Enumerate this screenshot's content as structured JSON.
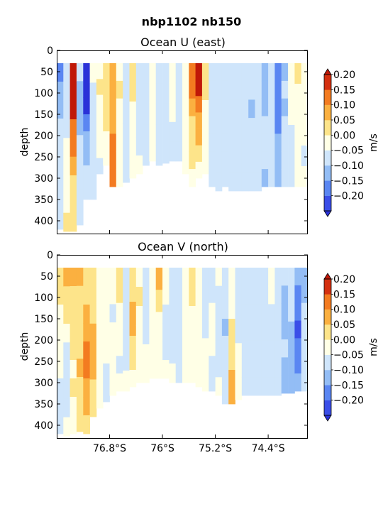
{
  "figure": {
    "suptitle": "nbp1102 nb150"
  },
  "colormap": {
    "levels": [
      -0.2,
      -0.15,
      -0.1,
      -0.05,
      0.0,
      0.05,
      0.1,
      0.15,
      0.2
    ],
    "colors": [
      "#3a4ee8",
      "#5a86f2",
      "#93bdf5",
      "#cfe5fb",
      "#ffffe6",
      "#fde48a",
      "#fbb040",
      "#f37b20",
      "#d43010"
    ],
    "extend_low": "#2a32d8",
    "extend_high": "#c01808"
  },
  "chart_data": [
    {
      "type": "heatmap",
      "title": "Ocean U (east)",
      "xlabel": "",
      "ylabel": "depth",
      "ylim": [
        430,
        0
      ],
      "yticks": [
        "0",
        "50",
        "100",
        "150",
        "200",
        "250",
        "300",
        "350",
        "400"
      ],
      "xlim": [
        -77.6,
        -73.8
      ],
      "xticks": [],
      "colorbar": {
        "label": "m/s",
        "ticks": [
          "0.20",
          "0.15",
          "0.10",
          "0.05",
          "0.00",
          "−0.05",
          "−0.10",
          "−0.15",
          "−0.20"
        ]
      },
      "profiles": [
        {
          "lat": -77.55,
          "bottom": 420,
          "values": [
            -0.12,
            -0.1,
            -0.07,
            -0.05,
            -0.04,
            -0.03,
            -0.02,
            -0.02,
            -0.01
          ]
        },
        {
          "lat": -77.45,
          "bottom": 425,
          "values": [
            -0.05,
            -0.03,
            -0.02,
            -0.01,
            0.0,
            0.01,
            0.03,
            0.04,
            0.05
          ]
        },
        {
          "lat": -77.35,
          "bottom": 425,
          "values": [
            0.22,
            0.22,
            0.21,
            0.19,
            0.15,
            0.12,
            0.08,
            0.06,
            0.05
          ]
        },
        {
          "lat": -77.25,
          "bottom": 410,
          "values": [
            -0.05,
            -0.06,
            -0.07,
            -0.06,
            -0.05,
            -0.04,
            -0.03,
            -0.02,
            -0.01
          ]
        },
        {
          "lat": -77.15,
          "bottom": 350,
          "values": [
            -0.22,
            -0.22,
            -0.21,
            -0.15,
            -0.1,
            -0.07,
            -0.05,
            -0.03
          ]
        },
        {
          "lat": -77.05,
          "bottom": 350,
          "values": [
            0.0,
            -0.01,
            -0.03,
            -0.04,
            -0.05,
            -0.04,
            -0.03
          ]
        },
        {
          "lat": -76.95,
          "bottom": 290,
          "values": [
            0.04,
            0.06,
            0.04,
            0.02,
            0.01,
            0.0,
            -0.01
          ]
        },
        {
          "lat": -76.85,
          "bottom": 270,
          "values": [
            0.08,
            0.09,
            0.07,
            0.05,
            0.03,
            0.02
          ]
        },
        {
          "lat": -76.75,
          "bottom": 320,
          "values": [
            0.12,
            0.13,
            0.14,
            0.13,
            0.15,
            0.18,
            0.16
          ]
        },
        {
          "lat": -76.65,
          "bottom": 320,
          "values": [
            0.04,
            0.05,
            0.04,
            0.03,
            0.02,
            0.02,
            0.01
          ]
        },
        {
          "lat": -76.55,
          "bottom": 310,
          "values": [
            -0.03,
            -0.02,
            -0.03,
            -0.02,
            -0.02,
            -0.01
          ]
        },
        {
          "lat": -76.45,
          "bottom": 300,
          "values": [
            0.05,
            0.06,
            0.03,
            0.02,
            0.01,
            0.0
          ]
        },
        {
          "lat": -76.35,
          "bottom": 290,
          "values": [
            -0.02,
            -0.03,
            -0.02,
            -0.01,
            -0.01,
            0.0
          ]
        },
        {
          "lat": -76.25,
          "bottom": 270,
          "values": [
            -0.04,
            -0.03,
            -0.02,
            -0.02,
            -0.01
          ]
        },
        {
          "lat": -76.15,
          "bottom": 260,
          "values": [
            0.01,
            0.02,
            0.01,
            0.0,
            0.0
          ]
        },
        {
          "lat": -76.05,
          "bottom": 270,
          "values": [
            -0.02,
            -0.01,
            -0.02,
            -0.03,
            -0.02
          ]
        },
        {
          "lat": -75.95,
          "bottom": 265,
          "values": [
            -0.03,
            -0.02,
            -0.01,
            -0.02,
            -0.01
          ]
        },
        {
          "lat": -75.85,
          "bottom": 260,
          "values": [
            0.02,
            0.01,
            0.0,
            -0.01,
            -0.01
          ]
        },
        {
          "lat": -75.75,
          "bottom": 260,
          "values": [
            -0.02,
            -0.02,
            -0.03,
            -0.02,
            -0.01
          ]
        },
        {
          "lat": -75.65,
          "bottom": 290,
          "values": [
            0.02,
            0.03,
            0.02,
            0.01,
            0.0,
            0.01
          ]
        },
        {
          "lat": -75.55,
          "bottom": 320,
          "values": [
            0.15,
            0.16,
            0.12,
            0.08,
            0.06,
            0.05,
            0.04
          ]
        },
        {
          "lat": -75.45,
          "bottom": 300,
          "values": [
            0.24,
            0.2,
            0.16,
            0.14,
            0.12,
            0.08,
            0.04
          ]
        },
        {
          "lat": -75.35,
          "bottom": 290,
          "values": [
            0.06,
            0.05,
            0.04,
            0.02,
            0.01,
            0.0
          ]
        },
        {
          "lat": -75.25,
          "bottom": 320,
          "values": [
            -0.03,
            -0.04,
            -0.03,
            -0.02,
            -0.03,
            -0.04,
            -0.03
          ]
        },
        {
          "lat": -75.15,
          "bottom": 330,
          "values": [
            -0.02,
            -0.03,
            -0.02,
            -0.03,
            -0.04,
            -0.03,
            -0.02
          ]
        },
        {
          "lat": -75.05,
          "bottom": 320,
          "values": [
            -0.02,
            -0.02,
            -0.03,
            -0.04,
            -0.03,
            -0.02,
            -0.01
          ]
        },
        {
          "lat": -74.95,
          "bottom": 330,
          "values": [
            -0.03,
            -0.02,
            -0.02,
            -0.01,
            -0.02,
            -0.03,
            -0.02
          ]
        },
        {
          "lat": -74.85,
          "bottom": 330,
          "values": [
            -0.02,
            -0.03,
            -0.04,
            -0.03,
            -0.02,
            -0.03,
            -0.04
          ]
        },
        {
          "lat": -74.75,
          "bottom": 330,
          "values": [
            -0.04,
            -0.03,
            -0.02,
            -0.03,
            -0.04,
            -0.03,
            -0.02
          ]
        },
        {
          "lat": -74.65,
          "bottom": 330,
          "values": [
            -0.02,
            -0.04,
            -0.06,
            -0.04,
            -0.03,
            -0.02,
            -0.03
          ]
        },
        {
          "lat": -74.55,
          "bottom": 330,
          "values": [
            -0.03,
            -0.02,
            -0.01,
            -0.02,
            -0.01,
            -0.02,
            -0.03
          ]
        },
        {
          "lat": -74.45,
          "bottom": 320,
          "values": [
            -0.06,
            -0.07,
            -0.06,
            -0.05,
            -0.04,
            -0.05,
            -0.06
          ]
        },
        {
          "lat": -74.35,
          "bottom": 320,
          "values": [
            -0.02,
            -0.03,
            -0.02,
            -0.01,
            -0.02,
            -0.01
          ]
        },
        {
          "lat": -74.25,
          "bottom": 320,
          "values": [
            -0.12,
            -0.14,
            -0.13,
            -0.12,
            -0.1,
            -0.08,
            -0.06
          ]
        },
        {
          "lat": -74.15,
          "bottom": 320,
          "values": [
            -0.06,
            -0.05,
            -0.06,
            -0.05,
            -0.04,
            -0.03,
            -0.02
          ]
        },
        {
          "lat": -74.05,
          "bottom": 320,
          "values": [
            0.02,
            0.01,
            0.0,
            -0.01,
            -0.02,
            -0.01
          ]
        },
        {
          "lat": -73.95,
          "bottom": 320,
          "values": [
            0.06,
            0.03,
            0.02,
            0.01,
            0.0,
            0.0
          ]
        },
        {
          "lat": -73.85,
          "bottom": 320,
          "values": [
            0.01,
            0.0,
            0.01,
            0.0,
            -0.01,
            0.0
          ]
        }
      ]
    },
    {
      "type": "heatmap",
      "title": "Ocean V (north)",
      "xlabel": "",
      "ylabel": "depth",
      "ylim": [
        430,
        0
      ],
      "yticks": [
        "0",
        "50",
        "100",
        "150",
        "200",
        "250",
        "300",
        "350",
        "400"
      ],
      "xlim": [
        -77.6,
        -73.8
      ],
      "xticks": [
        {
          "label": "76.8°S",
          "lat": -76.8
        },
        {
          "label": "76°S",
          "lat": -76.0
        },
        {
          "label": "75.2°S",
          "lat": -75.2
        },
        {
          "label": "74.4°S",
          "lat": -74.4
        }
      ],
      "colorbar": {
        "label": "m/s",
        "ticks": [
          "0.20",
          "0.15",
          "0.10",
          "0.05",
          "0.00",
          "−0.05",
          "−0.10",
          "−0.15",
          "−0.20"
        ]
      },
      "profiles": [
        {
          "lat": -77.55,
          "bottom": 420,
          "values": [
            0.06,
            0.07,
            0.04,
            0.02,
            0.01,
            0.0,
            -0.01,
            -0.02,
            -0.02
          ]
        },
        {
          "lat": -77.45,
          "bottom": 425,
          "values": [
            0.12,
            0.09,
            0.05,
            0.0,
            -0.02,
            -0.03,
            -0.02,
            -0.01,
            0.0
          ]
        },
        {
          "lat": -77.35,
          "bottom": 420,
          "values": [
            0.11,
            0.09,
            0.07,
            0.06,
            0.05,
            0.04,
            0.05,
            0.04,
            0.03
          ]
        },
        {
          "lat": -77.25,
          "bottom": 415,
          "values": [
            0.1,
            0.09,
            0.08,
            0.08,
            0.09,
            0.1,
            0.09,
            0.08,
            0.07
          ]
        },
        {
          "lat": -77.15,
          "bottom": 420,
          "values": [
            0.08,
            0.09,
            0.1,
            0.12,
            0.17,
            0.18,
            0.13,
            0.1,
            0.09
          ]
        },
        {
          "lat": -77.05,
          "bottom": 380,
          "values": [
            0.06,
            0.07,
            0.08,
            0.1,
            0.12,
            0.1,
            0.08,
            0.06
          ]
        },
        {
          "lat": -76.95,
          "bottom": 360,
          "values": [
            0.02,
            0.03,
            0.02,
            0.01,
            0.01,
            0.0,
            0.0,
            0.01
          ]
        },
        {
          "lat": -76.85,
          "bottom": 345,
          "values": [
            0.04,
            0.03,
            0.02,
            0.01,
            0.0,
            -0.01,
            -0.02
          ]
        },
        {
          "lat": -76.75,
          "bottom": 330,
          "values": [
            0.01,
            0.0,
            -0.02,
            0.0,
            0.01,
            0.02,
            0.01
          ]
        },
        {
          "lat": -76.65,
          "bottom": 320,
          "values": [
            0.08,
            0.06,
            0.03,
            0.01,
            0.0,
            -0.01,
            0.0
          ]
        },
        {
          "lat": -76.55,
          "bottom": 320,
          "values": [
            -0.01,
            -0.02,
            -0.03,
            -0.02,
            -0.01,
            0.0
          ]
        },
        {
          "lat": -76.45,
          "bottom": 310,
          "values": [
            0.06,
            0.08,
            0.1,
            0.11,
            0.08,
            0.05,
            0.02
          ]
        },
        {
          "lat": -76.35,
          "bottom": 300,
          "values": [
            0.04,
            0.05,
            0.04,
            0.03,
            0.02,
            0.01
          ]
        },
        {
          "lat": -76.25,
          "bottom": 300,
          "values": [
            -0.02,
            -0.03,
            -0.02,
            -0.01,
            0.0,
            0.0
          ]
        },
        {
          "lat": -76.15,
          "bottom": 290,
          "values": [
            0.02,
            0.01,
            0.0,
            0.0,
            0.01
          ]
        },
        {
          "lat": -76.05,
          "bottom": 290,
          "values": [
            0.14,
            0.08,
            0.04,
            0.02,
            0.01
          ]
        },
        {
          "lat": -75.95,
          "bottom": 290,
          "values": [
            0.01,
            0.0,
            -0.02,
            -0.02,
            -0.01,
            0.0
          ]
        },
        {
          "lat": -75.85,
          "bottom": 300,
          "values": [
            -0.03,
            -0.04,
            -0.03,
            -0.02,
            -0.01,
            0.0
          ]
        },
        {
          "lat": -75.75,
          "bottom": 300,
          "values": [
            -0.02,
            -0.01,
            -0.02,
            -0.03,
            -0.02,
            -0.01
          ]
        },
        {
          "lat": -75.65,
          "bottom": 300,
          "values": [
            0.02,
            0.01,
            0.0,
            0.01,
            0.02,
            0.01
          ]
        },
        {
          "lat": -75.55,
          "bottom": 300,
          "values": [
            0.05,
            0.06,
            0.04,
            0.03,
            0.04,
            0.03
          ]
        },
        {
          "lat": -75.45,
          "bottom": 310,
          "values": [
            0.02,
            0.03,
            0.02,
            0.01,
            0.0,
            0.01
          ]
        },
        {
          "lat": -75.35,
          "bottom": 320,
          "values": [
            -0.03,
            -0.04,
            -0.02,
            -0.01,
            0.0,
            0.01,
            0.02
          ]
        },
        {
          "lat": -75.25,
          "bottom": 320,
          "values": [
            -0.02,
            -0.01,
            0.0,
            0.01,
            0.0,
            -0.01,
            -0.02
          ]
        },
        {
          "lat": -75.15,
          "bottom": 330,
          "values": [
            0.0,
            -0.01,
            -0.02,
            -0.03,
            -0.02,
            -0.01,
            0.0
          ]
        },
        {
          "lat": -75.05,
          "bottom": 350,
          "values": [
            -0.02,
            -0.03,
            -0.04,
            -0.06,
            -0.05,
            -0.04,
            -0.03,
            -0.02
          ]
        },
        {
          "lat": -74.95,
          "bottom": 350,
          "values": [
            0.01,
            0.02,
            0.04,
            0.06,
            0.07,
            0.08,
            0.1,
            0.12
          ]
        },
        {
          "lat": -74.85,
          "bottom": 340,
          "values": [
            -0.02,
            -0.03,
            -0.02,
            -0.01,
            0.0,
            0.02,
            0.03
          ]
        },
        {
          "lat": -74.75,
          "bottom": 330,
          "values": [
            -0.04,
            -0.05,
            -0.04,
            -0.03,
            -0.04,
            -0.05,
            -0.04
          ]
        },
        {
          "lat": -74.65,
          "bottom": 330,
          "values": [
            -0.02,
            -0.03,
            -0.04,
            -0.05,
            -0.04,
            -0.03,
            -0.02
          ]
        },
        {
          "lat": -74.55,
          "bottom": 330,
          "values": [
            -0.01,
            -0.02,
            -0.03,
            -0.02,
            -0.03,
            -0.04,
            -0.03
          ]
        },
        {
          "lat": -74.45,
          "bottom": 330,
          "values": [
            -0.03,
            -0.04,
            -0.03,
            -0.02,
            -0.03,
            -0.02,
            -0.03
          ]
        },
        {
          "lat": -74.35,
          "bottom": 330,
          "values": [
            0.01,
            0.0,
            -0.01,
            -0.02,
            -0.01,
            -0.02,
            -0.01
          ]
        },
        {
          "lat": -74.25,
          "bottom": 330,
          "values": [
            -0.04,
            -0.05,
            -0.04,
            -0.03,
            -0.04,
            -0.05,
            -0.04
          ]
        },
        {
          "lat": -74.15,
          "bottom": 325,
          "values": [
            -0.05,
            -0.06,
            -0.07,
            -0.06,
            -0.05,
            -0.06,
            -0.07
          ]
        },
        {
          "lat": -74.05,
          "bottom": 325,
          "values": [
            -0.03,
            -0.04,
            -0.05,
            -0.06,
            -0.07,
            -0.08,
            -0.07
          ]
        },
        {
          "lat": -73.95,
          "bottom": 320,
          "values": [
            -0.1,
            -0.12,
            -0.14,
            -0.16,
            -0.15,
            -0.12,
            -0.1
          ]
        },
        {
          "lat": -73.85,
          "bottom": 320,
          "values": [
            -0.08,
            -0.06,
            -0.05,
            -0.04,
            -0.03,
            -0.02,
            -0.02
          ]
        }
      ]
    }
  ]
}
